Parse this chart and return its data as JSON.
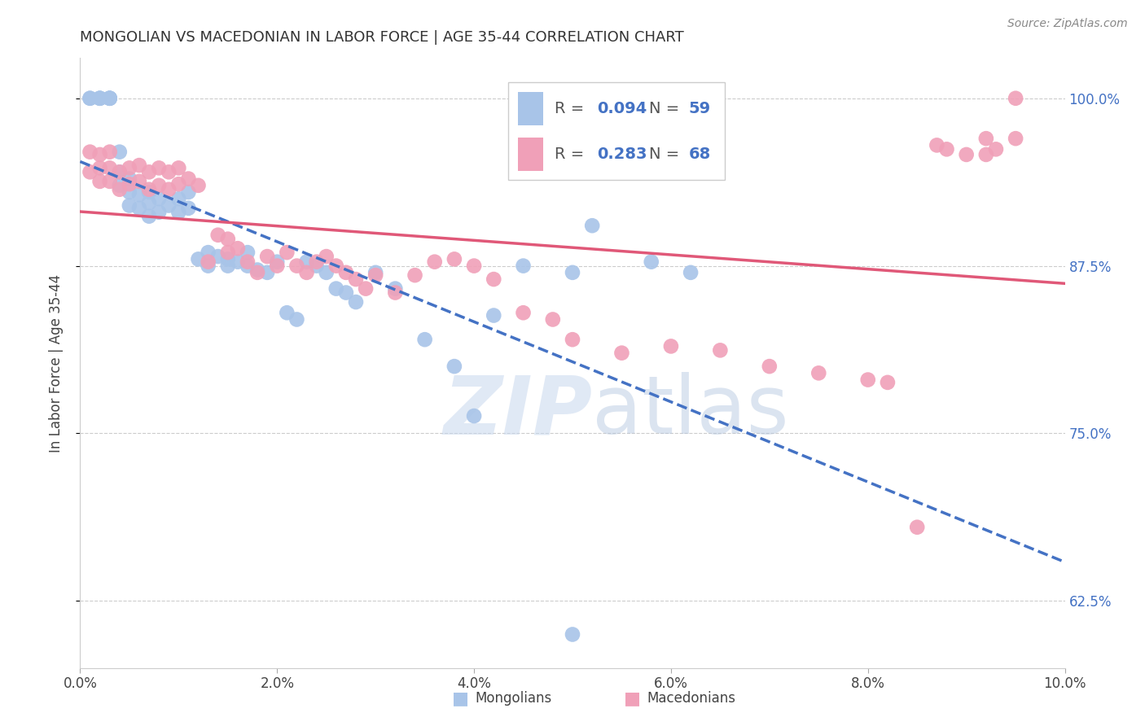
{
  "title": "MONGOLIAN VS MACEDONIAN IN LABOR FORCE | AGE 35-44 CORRELATION CHART",
  "source": "Source: ZipAtlas.com",
  "ylabel": "In Labor Force | Age 35-44",
  "xlim": [
    0.0,
    0.1
  ],
  "ylim": [
    0.575,
    1.03
  ],
  "mongolians_R": 0.094,
  "mongolians_N": 59,
  "macedonians_R": 0.283,
  "macedonians_N": 68,
  "mongolian_color": "#a8c4e8",
  "macedonian_color": "#f0a0b8",
  "mongolian_line_color": "#4472c4",
  "macedonian_line_color": "#e05878",
  "legend_mongolians": "Mongolians",
  "legend_macedonians": "Macedonians",
  "mongolians_x": [
    0.001,
    0.001,
    0.002,
    0.002,
    0.002,
    0.003,
    0.003,
    0.003,
    0.003,
    0.004,
    0.004,
    0.004,
    0.005,
    0.005,
    0.005,
    0.006,
    0.006,
    0.007,
    0.007,
    0.007,
    0.008,
    0.008,
    0.009,
    0.01,
    0.01,
    0.011,
    0.011,
    0.012,
    0.013,
    0.013,
    0.014,
    0.015,
    0.015,
    0.016,
    0.017,
    0.017,
    0.018,
    0.019,
    0.02,
    0.021,
    0.022,
    0.023,
    0.024,
    0.025,
    0.026,
    0.027,
    0.028,
    0.03,
    0.032,
    0.035,
    0.038,
    0.04,
    0.042,
    0.045,
    0.05,
    0.052,
    0.058,
    0.062,
    0.05
  ],
  "mongolians_y": [
    1.0,
    1.0,
    1.0,
    1.0,
    1.0,
    1.0,
    1.0,
    1.0,
    1.0,
    0.96,
    0.945,
    0.935,
    0.94,
    0.93,
    0.92,
    0.928,
    0.918,
    0.93,
    0.922,
    0.912,
    0.925,
    0.915,
    0.92,
    0.925,
    0.915,
    0.93,
    0.918,
    0.88,
    0.885,
    0.875,
    0.882,
    0.88,
    0.875,
    0.878,
    0.885,
    0.875,
    0.872,
    0.87,
    0.878,
    0.84,
    0.835,
    0.878,
    0.875,
    0.87,
    0.858,
    0.855,
    0.848,
    0.87,
    0.858,
    0.82,
    0.8,
    0.763,
    0.838,
    0.875,
    0.87,
    0.905,
    0.878,
    0.87,
    0.6
  ],
  "macedonians_x": [
    0.001,
    0.001,
    0.002,
    0.002,
    0.002,
    0.003,
    0.003,
    0.003,
    0.004,
    0.004,
    0.005,
    0.005,
    0.006,
    0.006,
    0.007,
    0.007,
    0.008,
    0.008,
    0.009,
    0.009,
    0.01,
    0.01,
    0.011,
    0.012,
    0.013,
    0.014,
    0.015,
    0.015,
    0.016,
    0.017,
    0.018,
    0.019,
    0.02,
    0.021,
    0.022,
    0.023,
    0.024,
    0.025,
    0.026,
    0.027,
    0.028,
    0.029,
    0.03,
    0.032,
    0.034,
    0.036,
    0.038,
    0.04,
    0.042,
    0.045,
    0.048,
    0.05,
    0.055,
    0.06,
    0.065,
    0.07,
    0.075,
    0.08,
    0.082,
    0.085,
    0.087,
    0.09,
    0.092,
    0.093,
    0.095,
    0.088,
    0.092,
    0.095
  ],
  "macedonians_y": [
    0.96,
    0.945,
    0.958,
    0.948,
    0.938,
    0.96,
    0.948,
    0.938,
    0.945,
    0.932,
    0.948,
    0.936,
    0.95,
    0.938,
    0.945,
    0.932,
    0.948,
    0.935,
    0.945,
    0.932,
    0.948,
    0.936,
    0.94,
    0.935,
    0.878,
    0.898,
    0.895,
    0.885,
    0.888,
    0.878,
    0.87,
    0.882,
    0.875,
    0.885,
    0.875,
    0.87,
    0.878,
    0.882,
    0.875,
    0.87,
    0.865,
    0.858,
    0.868,
    0.855,
    0.868,
    0.878,
    0.88,
    0.875,
    0.865,
    0.84,
    0.835,
    0.82,
    0.81,
    0.815,
    0.812,
    0.8,
    0.795,
    0.79,
    0.788,
    0.68,
    0.965,
    0.958,
    0.97,
    0.962,
    1.0,
    0.962,
    0.958,
    0.97
  ]
}
